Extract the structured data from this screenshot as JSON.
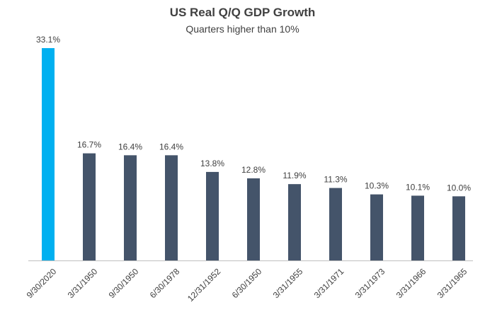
{
  "chart_data": {
    "type": "bar",
    "title": "US Real Q/Q GDP Growth",
    "subtitle": "Quarters higher than 10%",
    "xlabel": "",
    "ylabel": "",
    "categories": [
      "9/30/2020",
      "3/31/1950",
      "9/30/1950",
      "6/30/1978",
      "12/31/1952",
      "6/30/1950",
      "3/31/1955",
      "3/31/1971",
      "3/31/1973",
      "3/31/1966",
      "3/31/1965"
    ],
    "values": [
      33.1,
      16.7,
      16.4,
      16.4,
      13.8,
      12.8,
      11.9,
      11.3,
      10.3,
      10.1,
      10.0
    ],
    "data_labels": [
      "33.1%",
      "16.7%",
      "16.4%",
      "16.4%",
      "13.8%",
      "12.8%",
      "11.9%",
      "11.3%",
      "10.3%",
      "10.1%",
      "10.0%"
    ],
    "ylim": [
      0,
      33.1
    ],
    "grid": false,
    "colors": {
      "highlight": "#00B0F0",
      "default": "#44546A",
      "axis": "#BFBFBF"
    }
  }
}
